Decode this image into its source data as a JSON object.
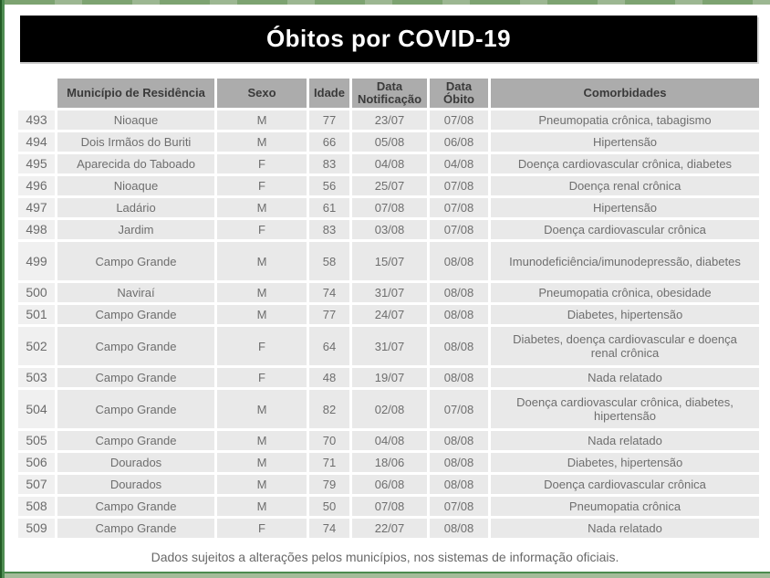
{
  "page": {
    "title": "Óbitos por COVID-19",
    "footer": "Dados sujeitos a alterações pelos municípios, nos sistemas de informação oficiais."
  },
  "colors": {
    "banner_bg": "#000000",
    "banner_text": "#ffffff",
    "header_bg": "#acacac",
    "cell_bg": "#e9e9e9",
    "accent_green": "#4f8d52",
    "body_text": "#6e6e6e"
  },
  "table": {
    "columns": [
      "Município de Residência",
      "Sexo",
      "Idade",
      "Data Notificação",
      "Data Óbito",
      "Comorbidades"
    ],
    "rows": [
      {
        "id": "493",
        "municipio": "Nioaque",
        "sexo": "M",
        "idade": "77",
        "data_notificacao": "23/07",
        "data_obito": "07/08",
        "comorbidades": "Pneumopatia crônica, tabagismo"
      },
      {
        "id": "494",
        "municipio": "Dois Irmãos do Buriti",
        "sexo": "M",
        "idade": "66",
        "data_notificacao": "05/08",
        "data_obito": "06/08",
        "comorbidades": "Hipertensão"
      },
      {
        "id": "495",
        "municipio": "Aparecida do Taboado",
        "sexo": "F",
        "idade": "83",
        "data_notificacao": "04/08",
        "data_obito": "04/08",
        "comorbidades": "Doença cardiovascular crônica, diabetes"
      },
      {
        "id": "496",
        "municipio": "Nioaque",
        "sexo": "F",
        "idade": "56",
        "data_notificacao": "25/07",
        "data_obito": "07/08",
        "comorbidades": "Doença renal crônica"
      },
      {
        "id": "497",
        "municipio": "Ladário",
        "sexo": "M",
        "idade": "61",
        "data_notificacao": "07/08",
        "data_obito": "07/08",
        "comorbidades": "Hipertensão"
      },
      {
        "id": "498",
        "municipio": "Jardim",
        "sexo": "F",
        "idade": "83",
        "data_notificacao": "03/08",
        "data_obito": "07/08",
        "comorbidades": "Doença cardiovascular crônica"
      },
      {
        "id": "499",
        "municipio": "Campo Grande",
        "sexo": "M",
        "idade": "58",
        "data_notificacao": "15/07",
        "data_obito": "08/08",
        "comorbidades": "Imunodeficiência/imunodepressão, diabetes"
      },
      {
        "id": "500",
        "municipio": "Naviraí",
        "sexo": "M",
        "idade": "74",
        "data_notificacao": "31/07",
        "data_obito": "08/08",
        "comorbidades": "Pneumopatia crônica, obesidade"
      },
      {
        "id": "501",
        "municipio": "Campo Grande",
        "sexo": "M",
        "idade": "77",
        "data_notificacao": "24/07",
        "data_obito": "08/08",
        "comorbidades": "Diabetes, hipertensão"
      },
      {
        "id": "502",
        "municipio": "Campo Grande",
        "sexo": "F",
        "idade": "64",
        "data_notificacao": "31/07",
        "data_obito": "08/08",
        "comorbidades": "Diabetes, doença cardiovascular e doença renal crônica"
      },
      {
        "id": "503",
        "municipio": "Campo Grande",
        "sexo": "F",
        "idade": "48",
        "data_notificacao": "19/07",
        "data_obito": "08/08",
        "comorbidades": "Nada relatado"
      },
      {
        "id": "504",
        "municipio": "Campo Grande",
        "sexo": "M",
        "idade": "82",
        "data_notificacao": "02/08",
        "data_obito": "07/08",
        "comorbidades": "Doença cardiovascular crônica, diabetes, hipertensão"
      },
      {
        "id": "505",
        "municipio": "Campo Grande",
        "sexo": "M",
        "idade": "70",
        "data_notificacao": "04/08",
        "data_obito": "08/08",
        "comorbidades": "Nada relatado"
      },
      {
        "id": "506",
        "municipio": "Dourados",
        "sexo": "M",
        "idade": "71",
        "data_notificacao": "18/06",
        "data_obito": "08/08",
        "comorbidades": "Diabetes, hipertensão"
      },
      {
        "id": "507",
        "municipio": "Dourados",
        "sexo": "M",
        "idade": "79",
        "data_notificacao": "06/08",
        "data_obito": "08/08",
        "comorbidades": "Doença cardiovascular crônica"
      },
      {
        "id": "508",
        "municipio": "Campo Grande",
        "sexo": "M",
        "idade": "50",
        "data_notificacao": "07/08",
        "data_obito": "07/08",
        "comorbidades": "Pneumopatia crônica"
      },
      {
        "id": "509",
        "municipio": "Campo Grande",
        "sexo": "F",
        "idade": "74",
        "data_notificacao": "22/07",
        "data_obito": "08/08",
        "comorbidades": "Nada relatado"
      }
    ]
  }
}
